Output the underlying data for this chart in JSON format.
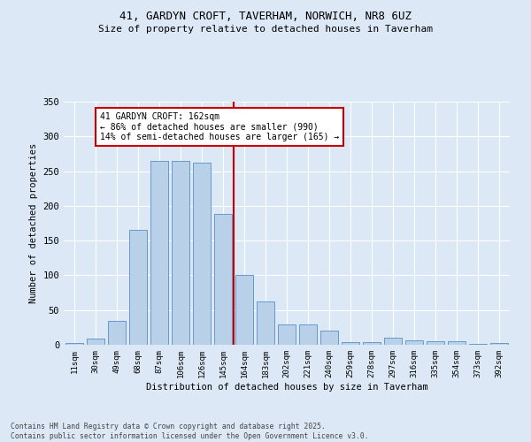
{
  "title_line1": "41, GARDYN CROFT, TAVERHAM, NORWICH, NR8 6UZ",
  "title_line2": "Size of property relative to detached houses in Taverham",
  "xlabel": "Distribution of detached houses by size in Taverham",
  "ylabel": "Number of detached properties",
  "categories": [
    "11sqm",
    "30sqm",
    "49sqm",
    "68sqm",
    "87sqm",
    "106sqm",
    "126sqm",
    "145sqm",
    "164sqm",
    "183sqm",
    "202sqm",
    "221sqm",
    "240sqm",
    "259sqm",
    "278sqm",
    "297sqm",
    "316sqm",
    "335sqm",
    "354sqm",
    "373sqm",
    "392sqm"
  ],
  "values": [
    2,
    9,
    35,
    165,
    265,
    265,
    262,
    188,
    100,
    62,
    29,
    29,
    20,
    4,
    4,
    10,
    7,
    5,
    5,
    1,
    3
  ],
  "bar_color": "#b8d0e8",
  "bar_edge_color": "#6699cc",
  "vline_color": "#cc0000",
  "annotation_text": "41 GARDYN CROFT: 162sqm\n← 86% of detached houses are smaller (990)\n14% of semi-detached houses are larger (165) →",
  "annotation_box_color": "#ffffff",
  "annotation_box_edge": "#cc0000",
  "background_color": "#dce8f5",
  "plot_bg_color": "#dce8f5",
  "footer": "Contains HM Land Registry data © Crown copyright and database right 2025.\nContains public sector information licensed under the Open Government Licence v3.0.",
  "ylim": [
    0,
    350
  ],
  "yticks": [
    0,
    50,
    100,
    150,
    200,
    250,
    300,
    350
  ]
}
